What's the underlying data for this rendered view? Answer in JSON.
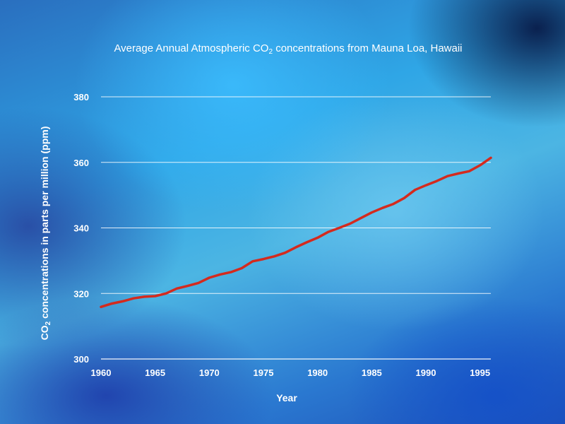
{
  "chart_data": {
    "type": "line",
    "title_parts": {
      "before": "Average Annual Atmospheric CO",
      "sub": "2",
      "after": " concentrations from Mauna Loa, Hawaii"
    },
    "xlabel": "Year",
    "ylabel_parts": {
      "before": "CO",
      "sub": "2",
      "after": " concentrations in parts per million (ppm)"
    },
    "xlim": [
      1960,
      1996
    ],
    "ylim": [
      300,
      380
    ],
    "x_ticks": [
      1960,
      1965,
      1970,
      1975,
      1980,
      1985,
      1990,
      1995
    ],
    "y_ticks": [
      300,
      320,
      340,
      360,
      380
    ],
    "grid": true,
    "series": [
      {
        "color": "#d42a1e",
        "x": [
          1960,
          1961,
          1962,
          1963,
          1964,
          1965,
          1966,
          1967,
          1968,
          1969,
          1970,
          1971,
          1972,
          1973,
          1974,
          1975,
          1976,
          1977,
          1978,
          1979,
          1980,
          1981,
          1982,
          1983,
          1984,
          1985,
          1986,
          1987,
          1988,
          1989,
          1990,
          1991,
          1992,
          1993,
          1994,
          1995,
          1996
        ],
        "y": [
          315.9,
          316.9,
          317.6,
          318.5,
          319.0,
          319.2,
          320.0,
          321.5,
          322.3,
          323.2,
          324.8,
          325.8,
          326.5,
          327.7,
          329.8,
          330.5,
          331.3,
          332.4,
          334.1,
          335.6,
          337.0,
          338.8,
          340.0,
          341.3,
          343.0,
          344.7,
          346.1,
          347.3,
          349.1,
          351.6,
          353.0,
          354.3,
          355.8,
          356.6,
          357.3,
          359.1,
          361.4
        ]
      }
    ]
  }
}
